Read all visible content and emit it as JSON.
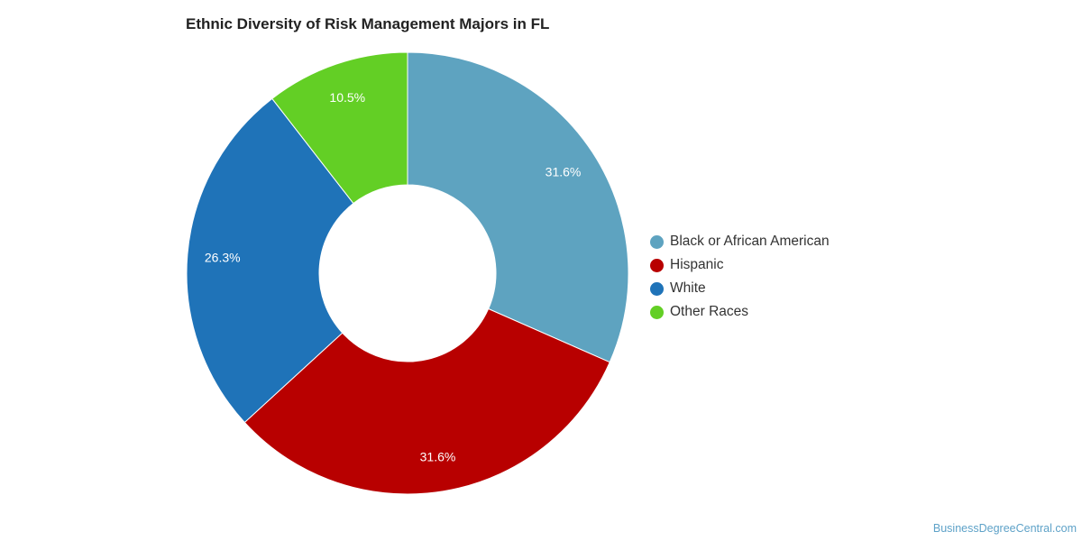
{
  "chart_data": {
    "type": "pie",
    "variant": "donut",
    "title": "Ethnic Diversity of Risk Management Majors in FL",
    "categories": [
      "Black or African American",
      "Hispanic",
      "White",
      "Other Races"
    ],
    "values": [
      31.6,
      31.6,
      26.3,
      10.5
    ],
    "data_labels": [
      "31.6%",
      "31.6%",
      "26.3%",
      "10.5%"
    ],
    "colors": [
      "#5ea3c0",
      "#b80000",
      "#1f73b8",
      "#63cf25"
    ],
    "legend_position": "right"
  },
  "credit": "BusinessDegreeCentral.com"
}
